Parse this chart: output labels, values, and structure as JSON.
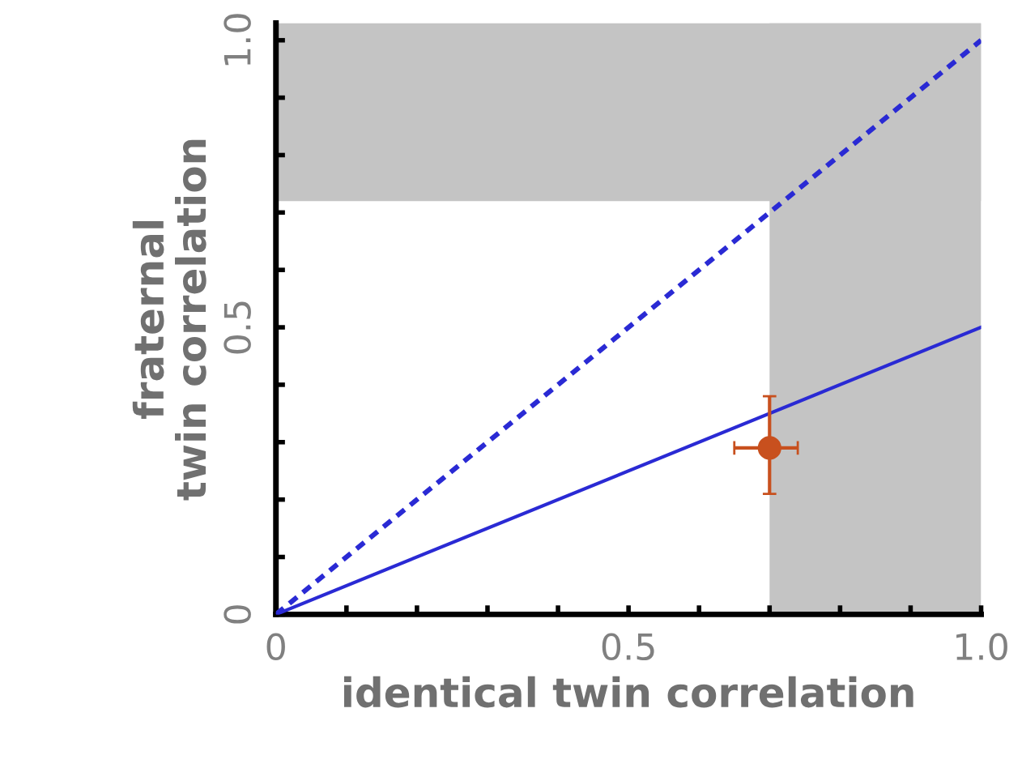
{
  "chart_data": {
    "type": "line",
    "xlabel": "identical twin correlation",
    "ylabel": "fraternal\ntwin correlation",
    "xlim": [
      0,
      1.0
    ],
    "ylim": [
      0,
      1.03
    ],
    "xticks": [
      0,
      {
        "value": 0.1,
        "label": null
      },
      {
        "value": 0.2,
        "label": null
      },
      {
        "value": 0.3,
        "label": null
      },
      {
        "value": 0.4,
        "label": null
      },
      0.5,
      {
        "value": 0.6,
        "label": null
      },
      {
        "value": 0.7,
        "label": null
      },
      {
        "value": 0.8,
        "label": null
      },
      {
        "value": 0.9,
        "label": null
      },
      {
        "value": 1.0,
        "label": "1.0"
      }
    ],
    "yticks": [
      0,
      {
        "value": 0.1,
        "label": null
      },
      {
        "value": 0.2,
        "label": null
      },
      {
        "value": 0.3,
        "label": null
      },
      {
        "value": 0.4,
        "label": null
      },
      0.5,
      {
        "value": 0.6,
        "label": null
      },
      {
        "value": 0.7,
        "label": null
      },
      {
        "value": 0.8,
        "label": null
      },
      {
        "value": 0.9,
        "label": null
      },
      {
        "value": 1.0,
        "label": "1.0"
      }
    ],
    "grid": false,
    "bands": [
      {
        "axis": "x",
        "from": 0.7,
        "to": 1.0,
        "color": "#c4c4c4"
      },
      {
        "axis": "y",
        "from": 0.72,
        "to": 1.03,
        "color": "#c4c4c4"
      }
    ],
    "series": [
      {
        "x": [
          0,
          1.0
        ],
        "values": [
          0,
          1.0
        ],
        "color": "#2a2ad4",
        "line_style": "dashed"
      },
      {
        "x": [
          0,
          1.0
        ],
        "values": [
          0,
          0.5
        ],
        "color": "#2a2ad4",
        "line_style": "solid"
      },
      {
        "type": "scatter",
        "x": [
          0.7
        ],
        "values": [
          0.29
        ],
        "color": "#c8501e",
        "marker": "circle",
        "errors": [
          [
            0.21,
            0.38
          ]
        ],
        "xerrors": [
          [
            0.65,
            0.74
          ]
        ]
      }
    ]
  }
}
